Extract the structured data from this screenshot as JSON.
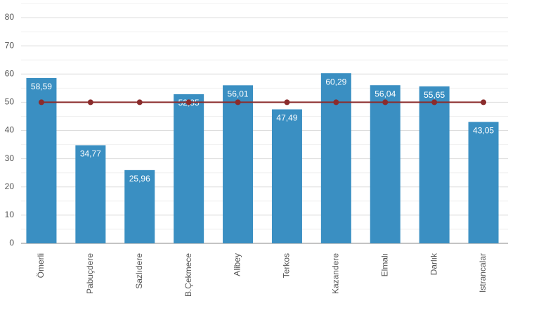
{
  "chart_data": {
    "type": "bar",
    "categories": [
      "Ömerli",
      "Pabuçdere",
      "Sazlıdere",
      "B.Çekmece",
      "Alibey",
      "Terkos",
      "Kazandere",
      "Elmalı",
      "Darlık",
      "Istrancalar"
    ],
    "values": [
      58.59,
      34.77,
      25.96,
      52.85,
      56.01,
      47.49,
      60.29,
      56.04,
      55.65,
      43.05
    ],
    "value_labels": [
      "58,59",
      "34,77",
      "25,96",
      "52,85",
      "56,01",
      "47,49",
      "60,29",
      "56,04",
      "55,65",
      "43,05"
    ],
    "color": "#3a8fc2",
    "line": {
      "values": [
        50,
        50,
        50,
        50,
        50,
        50,
        50,
        50,
        50,
        50
      ],
      "color": "#8b2c2c"
    },
    "ylim": [
      0,
      85
    ],
    "yticks": [
      0,
      10,
      20,
      30,
      40,
      50,
      60,
      70,
      80
    ],
    "minor_yticks": [
      5,
      15,
      25,
      35,
      45,
      55,
      65,
      75,
      85
    ],
    "grid": true
  }
}
